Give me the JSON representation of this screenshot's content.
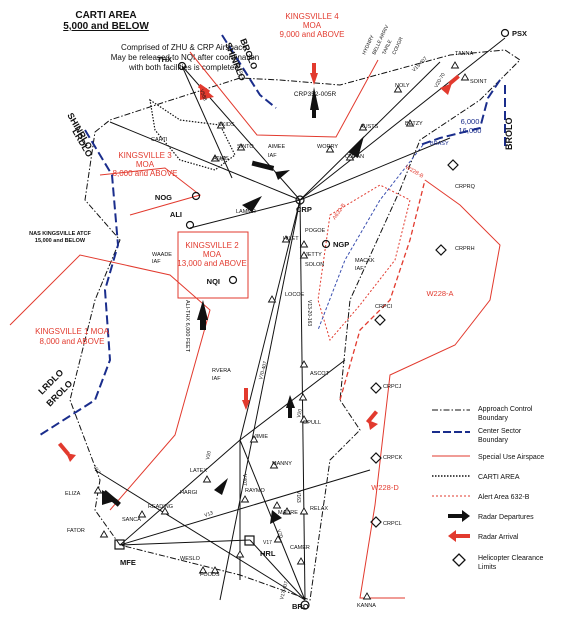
{
  "header": {
    "title": "CARTI AREA",
    "subtitle": "5,000 and BELOW",
    "note_lines": [
      "Comprised of ZHU & CRP Airspace.",
      "May be released to NQI after coordination",
      "with both facilities is completed."
    ]
  },
  "moa": [
    {
      "name": "KINGSVILLE 4",
      "l2": "MOA",
      "l3": "9,000 and ABOVE"
    },
    {
      "name": "KINGSVILLE 3",
      "l2": "MOA",
      "l3": "8,000 and ABOVE"
    },
    {
      "name": "KINGSVILLE 2",
      "l2": "MOA",
      "l3": "13,000 and ABOVE"
    },
    {
      "name": "KINGSVILLE 1 MOA",
      "l2": "8,000 and ABOVE"
    }
  ],
  "atcf": {
    "l1": "NAS KINGSVILLE ATCF",
    "l2": "15,000 and BELOW"
  },
  "betzy_alt": {
    "l1": "6,000",
    "l2": "16,000"
  },
  "sector_labels": [
    "BROLO",
    "SHINRLO",
    "SHINRLO",
    "LRDLO",
    "LRDLO",
    "BROLO",
    "BROLO"
  ],
  "routes": [
    "V163",
    "V588",
    "V20",
    "V13-20-163",
    "V70-407",
    "V20",
    "V407",
    "V20",
    "V13",
    "V17",
    "V17",
    "V70",
    "V163",
    "V17-407",
    "V15-407",
    "V20-70"
  ],
  "crp_text": "CRP352-005R",
  "alt_text": "ALI-THX 6,000 FEET",
  "alert_text": "A632-B",
  "w228b": "W228-B",
  "areas": [
    "W228-A",
    "W228-D"
  ],
  "airports": [
    "THX",
    "NOG",
    "ALI",
    "NQI",
    "NGP",
    "PSX"
  ],
  "fixes": [
    "CARTI",
    "SKIDS",
    "SINTO",
    "ATHIS",
    "AIMEE",
    "IAF",
    "WORRY",
    "AUSTS",
    "COPAN",
    "BETZY",
    "NOLY",
    "SOINT",
    "TANNA",
    "BRASY",
    "CRPRQ",
    "CRP",
    "HILET",
    "POGOE",
    "JETTY",
    "SOLON",
    "LOCOE",
    "MACKK",
    "IAF",
    "CRPRH",
    "CRPCI",
    "ASCOT",
    "LAMMR",
    "WAADE",
    "IAF",
    "RVERA",
    "IAF",
    "CRPCJ",
    "JIMIE",
    "OPULL",
    "MANNY",
    "LATEX",
    "HARGI",
    "RAYMO",
    "MADRE",
    "RELAX",
    "CAMER",
    "CRPCK",
    "CRPCL",
    "ELIZA",
    "FATOR",
    "SANCA",
    "READING",
    "MFE",
    "WESLO",
    "HRL",
    "FOODS",
    "BRO",
    "KANNA"
  ],
  "sector_fixes": [
    "BELLE ARRIV",
    "HYDNRY",
    "TARLE",
    "COUGR"
  ],
  "legend": [
    {
      "label": "Approach Control",
      "label2": "Boundary"
    },
    {
      "label": "Center Sector",
      "label2": "Boundary"
    },
    {
      "label": "Special Use Airspace",
      "label2": ""
    },
    {
      "label": "CARTI AREA",
      "label2": ""
    },
    {
      "label": "Alert Area 632-B",
      "label2": ""
    },
    {
      "label": "Radar Departures",
      "label2": ""
    },
    {
      "label": "Radar Arrival",
      "label2": ""
    },
    {
      "label": "Helicopter Clearance",
      "label2": "Limits"
    }
  ],
  "colors": {
    "line": "#111111",
    "sua": "#e23a2e",
    "center": "#1a2d8c",
    "alert": "#e23a2e",
    "arrow_dep": "#111111",
    "arrow_arr": "#e23a2e"
  }
}
